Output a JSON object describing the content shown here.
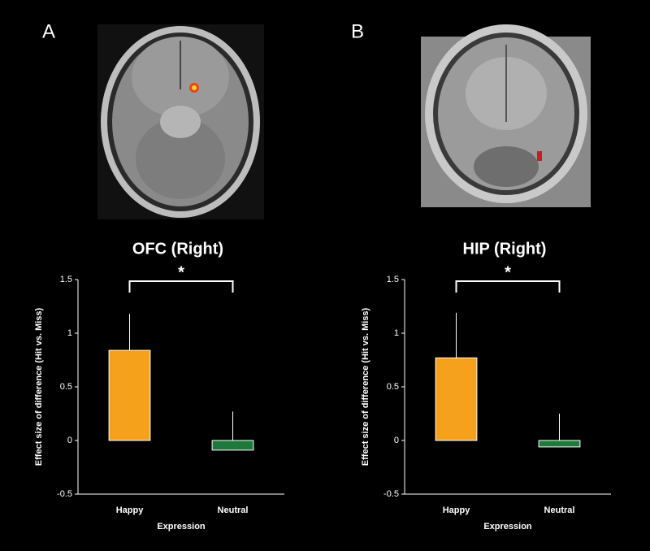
{
  "chart_data": [
    {
      "type": "bar",
      "panel_label": "A",
      "title": "OFC (Right)",
      "ylabel": "Effect size of difference (Hit vs. Miss)",
      "xlabel": "Expression",
      "categories": [
        "Happy",
        "Neutral"
      ],
      "values": [
        0.84,
        -0.09
      ],
      "errors": [
        0.34,
        0.36
      ],
      "colors": [
        "#f5a11c",
        "#1e7a3c"
      ],
      "ylim": [
        -0.5,
        1.5
      ],
      "yticks": [
        -0.5,
        0,
        0.5,
        1,
        1.5
      ],
      "annotation": "*"
    },
    {
      "type": "bar",
      "panel_label": "B",
      "title": "HIP (Right)",
      "ylabel": "Effect size of difference (Hit vs. Miss)",
      "xlabel": "Expression",
      "categories": [
        "Happy",
        "Neutral"
      ],
      "values": [
        0.77,
        -0.06
      ],
      "errors": [
        0.42,
        0.31
      ],
      "colors": [
        "#f5a11c",
        "#1e7a3c"
      ],
      "ylim": [
        -0.5,
        1.5
      ],
      "yticks": [
        -0.5,
        0,
        0.5,
        1,
        1.5
      ],
      "annotation": "*"
    }
  ]
}
